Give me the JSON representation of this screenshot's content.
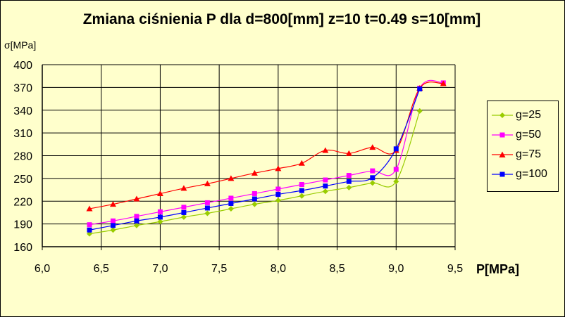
{
  "chart_data": {
    "type": "line",
    "title": "Zmiana ciśnienia P dla d=800[mm] z=10 t=0.49 s=10[mm]",
    "xlabel": "P[MPa]",
    "ylabel": "σ[MPa]",
    "xlim": [
      6.0,
      9.5
    ],
    "ylim": [
      160,
      400
    ],
    "x_ticks": [
      "6,0",
      "6,5",
      "7,0",
      "7,5",
      "8,0",
      "8,5",
      "9,0",
      "9,5"
    ],
    "y_ticks": [
      "160",
      "190",
      "220",
      "250",
      "280",
      "310",
      "340",
      "370",
      "400"
    ],
    "grid": true,
    "legend_position": "right",
    "series": [
      {
        "name": "g=25",
        "color": "#99cc00",
        "marker": "diamond",
        "x": [
          6.4,
          6.6,
          6.8,
          7.0,
          7.2,
          7.4,
          7.6,
          7.8,
          8.0,
          8.2,
          8.4,
          8.6,
          8.8,
          9.0,
          9.2
        ],
        "y": [
          177,
          182,
          188,
          193,
          199,
          204,
          210,
          216,
          221,
          227,
          233,
          238,
          244,
          246,
          339
        ]
      },
      {
        "name": "g=50",
        "color": "#ff00ff",
        "marker": "square",
        "x": [
          6.4,
          6.6,
          6.8,
          7.0,
          7.2,
          7.4,
          7.6,
          7.8,
          8.0,
          8.2,
          8.4,
          8.6,
          8.8,
          9.0,
          9.2,
          9.4
        ],
        "y": [
          189,
          194,
          200,
          206,
          212,
          218,
          224,
          230,
          236,
          242,
          248,
          254,
          260,
          262,
          369,
          376
        ]
      },
      {
        "name": "g=75",
        "color": "#ff0000",
        "marker": "triangle",
        "x": [
          6.4,
          6.6,
          6.8,
          7.0,
          7.2,
          7.4,
          7.6,
          7.8,
          8.0,
          8.2,
          8.4,
          8.6,
          8.8,
          9.0,
          9.2,
          9.4
        ],
        "y": [
          210,
          216,
          223,
          230,
          237,
          243,
          250,
          257,
          263,
          270,
          287,
          283,
          291,
          287,
          369,
          375
        ]
      },
      {
        "name": "g=100",
        "color": "#0000ff",
        "marker": "square",
        "x": [
          6.4,
          6.6,
          6.8,
          7.0,
          7.2,
          7.4,
          7.6,
          7.8,
          8.0,
          8.2,
          8.4,
          8.6,
          8.8,
          9.0,
          9.2
        ],
        "y": [
          182,
          188,
          194,
          199,
          205,
          211,
          217,
          223,
          229,
          234,
          240,
          246,
          251,
          289,
          368
        ]
      }
    ]
  }
}
